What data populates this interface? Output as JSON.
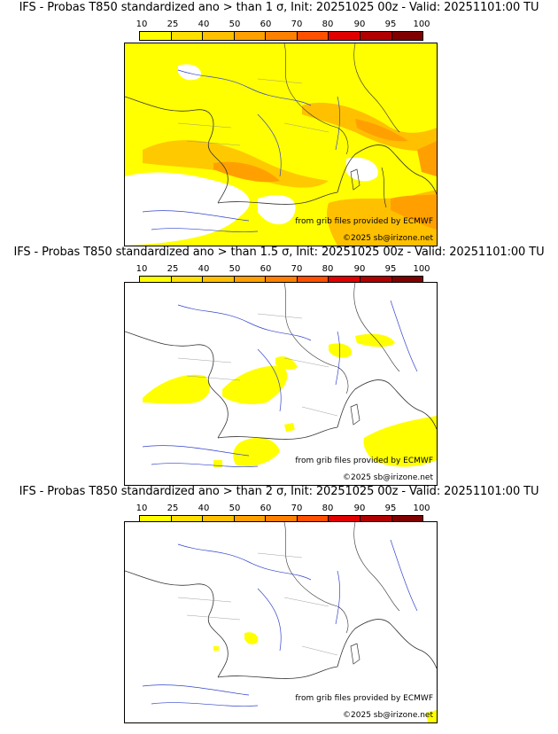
{
  "colorbar": {
    "ticks": [
      "10",
      "25",
      "40",
      "50",
      "60",
      "70",
      "80",
      "90",
      "95",
      "100"
    ],
    "colors": [
      "#ffff00",
      "#ffe000",
      "#ffc000",
      "#ffa000",
      "#ff8000",
      "#ff5000",
      "#e00000",
      "#b00000",
      "#800000"
    ]
  },
  "credits": {
    "source": "from grib files provided by ECMWF",
    "copyright": "©2025 sb@irizone.net"
  },
  "panels": [
    {
      "title": "IFS - Probas T850  standardized ano > than 1 σ, Init: 20251025 00z - Valid: 20251101:00 TU",
      "threshold_sigma": "1"
    },
    {
      "title": "IFS - Probas T850  standardized ano > than 1.5 σ, Init: 20251025 00z - Valid: 20251101:00 TU",
      "threshold_sigma": "1.5"
    },
    {
      "title": "IFS - Probas T850  standardized ano > than 2 σ, Init: 20251025 00z - Valid: 20251101:00 TU",
      "threshold_sigma": "2"
    }
  ]
}
